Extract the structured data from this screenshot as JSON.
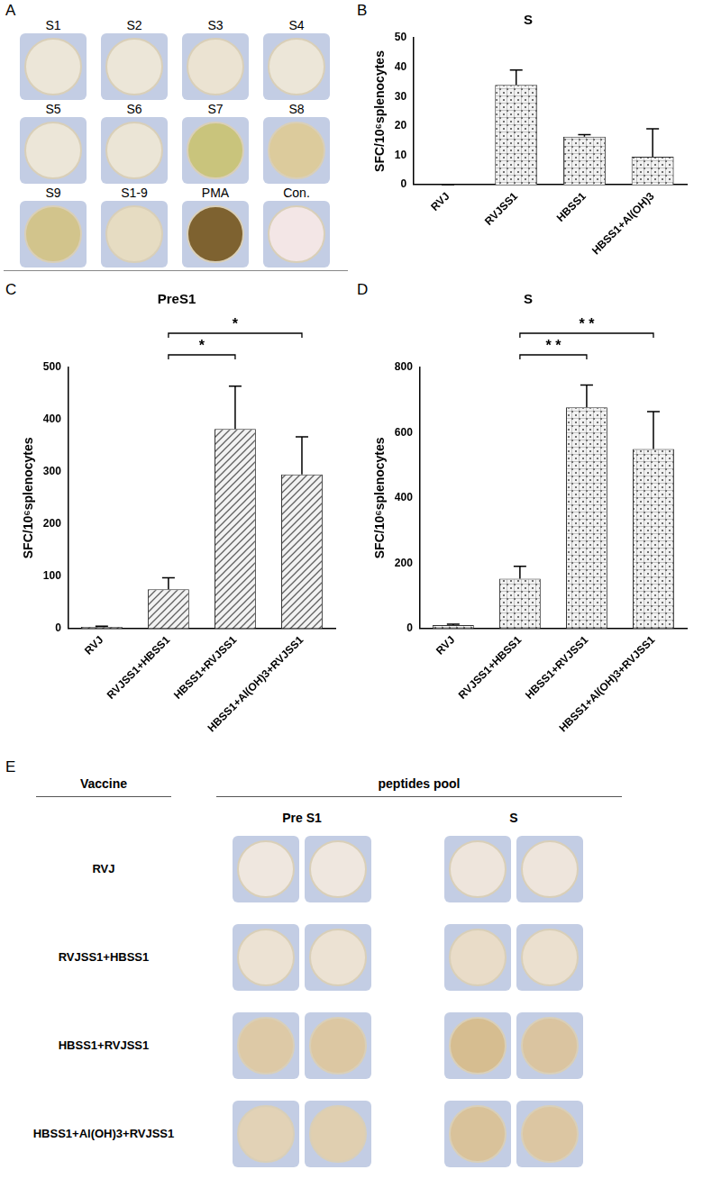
{
  "panel_a": {
    "panel_label": "A",
    "wells": [
      {
        "label": "S1",
        "color": "#ece6d8"
      },
      {
        "label": "S2",
        "color": "#ece6d8"
      },
      {
        "label": "S3",
        "color": "#ebe3d2"
      },
      {
        "label": "S4",
        "color": "#ece6d8"
      },
      {
        "label": "S5",
        "color": "#ece6d8"
      },
      {
        "label": "S6",
        "color": "#ebe5d6"
      },
      {
        "label": "S7",
        "color": "#c9c47c"
      },
      {
        "label": "S8",
        "color": "#dccb9c"
      },
      {
        "label": "S9",
        "color": "#d2c48c"
      },
      {
        "label": "S1-9",
        "color": "#e6dcc2"
      },
      {
        "label": "PMA",
        "color": "#7e6230"
      },
      {
        "label": "Con.",
        "color": "#f3e6e6"
      }
    ]
  },
  "chart_data": [
    {
      "panel_label": "B",
      "type": "bar",
      "title": "S",
      "y_label": "SFC/10⁶splenocytes",
      "categories": [
        "RVJ",
        "RVJSS1",
        "HBSS1",
        "HBSS1+Al(OH)3"
      ],
      "values": [
        0,
        34,
        16.3,
        9.5
      ],
      "errors": [
        0,
        5,
        0.7,
        9.5
      ],
      "color": "#707070",
      "ylim": [
        0,
        50
      ],
      "yticks": [
        0,
        10,
        20,
        30,
        40,
        50
      ],
      "grid": false
    },
    {
      "panel_label": "C",
      "type": "bar",
      "title": "PreS1",
      "y_label": "SFC/10⁶splenocytes",
      "categories": [
        "RVJ",
        "RVJSS1+HBSS1",
        "HBSS1+RVJSS1",
        "HBSS1+Al(OH)3+RVJSS1"
      ],
      "values": [
        3,
        75,
        382,
        295
      ],
      "errors": [
        1,
        22,
        82,
        72
      ],
      "color": "#606060",
      "ylim": [
        0,
        500
      ],
      "yticks": [
        0,
        100,
        200,
        300,
        400,
        500
      ],
      "grid": false,
      "annotations": [
        {
          "from": "RVJSS1+HBSS1",
          "to": "HBSS1+RVJSS1",
          "text": "*"
        },
        {
          "from": "RVJSS1+HBSS1",
          "to": "HBSS1+Al(OH)3+RVJSS1",
          "text": "*"
        }
      ]
    },
    {
      "panel_label": "D",
      "type": "bar",
      "title": "S",
      "y_label": "SFC/10⁶splenocytes",
      "categories": [
        "RVJ",
        "RVJSS1+HBSS1",
        "HBSS1+RVJSS1",
        "HBSS1+Al(OH)3+RVJSS1"
      ],
      "values": [
        10,
        152,
        678,
        550
      ],
      "errors": [
        3,
        38,
        68,
        115
      ],
      "color": "#707070",
      "ylim": [
        0,
        800
      ],
      "yticks": [
        0,
        200,
        400,
        600,
        800
      ],
      "grid": false,
      "annotations": [
        {
          "from": "RVJSS1+HBSS1",
          "to": "HBSS1+RVJSS1",
          "text": "* *"
        },
        {
          "from": "RVJSS1+HBSS1",
          "to": "HBSS1+Al(OH)3+RVJSS1",
          "text": "* *"
        }
      ]
    }
  ],
  "panel_e": {
    "panel_label": "E",
    "vaccine_header": "Vaccine",
    "pool_header": "peptides pool",
    "columns": [
      "Pre S1",
      "S"
    ],
    "rows": [
      {
        "label": "RVJ",
        "colors": [
          "#efe7df",
          "#efe7df",
          "#eee5dc",
          "#eee5dc"
        ]
      },
      {
        "label": "RVJSS1+HBSS1",
        "colors": [
          "#ece2d3",
          "#ece2d3",
          "#e9dcc8",
          "#ebe0cf"
        ]
      },
      {
        "label": "HBSS1+RVJSS1",
        "colors": [
          "#ddc9a6",
          "#dcc7a2",
          "#d6bd90",
          "#dac4a0"
        ]
      },
      {
        "label": "HBSS1+Al(OH)3+RVJSS1",
        "colors": [
          "#e2d2b6",
          "#e0cfb0",
          "#d9c29a",
          "#dcc6a2"
        ]
      }
    ]
  }
}
